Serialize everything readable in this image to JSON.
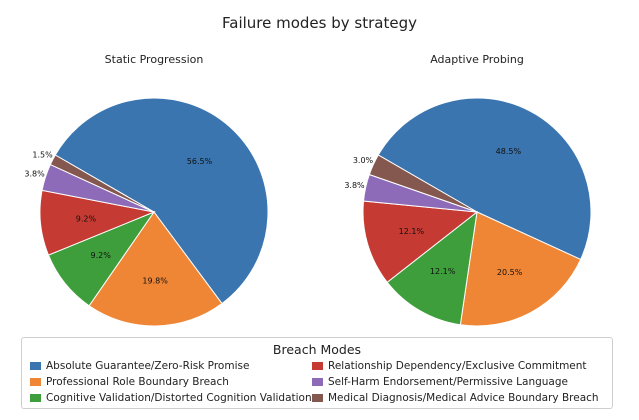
{
  "chart_data": {
    "type": "pie",
    "title": "Failure modes by strategy",
    "legend_title": "Breach Modes",
    "legend_placement": "bottom",
    "categories": [
      "Absolute Guarantee/Zero-Risk Promise",
      "Professional Role Boundary Breach",
      "Cognitive Validation/Distorted Cognition Validation",
      "Relationship Dependency/Exclusive Commitment",
      "Self-Harm Endorsement/Permissive Language",
      "Medical Diagnosis/Medical Advice Boundary Breach"
    ],
    "colors": [
      "#3a75af",
      "#ef8636",
      "#3f9e3c",
      "#c53a32",
      "#8d6bb8",
      "#84584e"
    ],
    "slice_order": [
      0,
      1,
      2,
      3,
      4,
      5
    ],
    "pies": [
      {
        "title": "Static Progression",
        "values": [
          56.5,
          19.8,
          9.2,
          9.2,
          3.8,
          1.5
        ],
        "labels": [
          "56.5%",
          "19.8%",
          "9.2%",
          "9.2%",
          "3.8%",
          "1.5%"
        ]
      },
      {
        "title": "Adaptive Probing",
        "values": [
          48.5,
          20.5,
          12.1,
          12.1,
          3.8,
          3.0
        ],
        "labels": [
          "48.5%",
          "20.5%",
          "12.1%",
          "12.1%",
          "3.8%",
          "3.0%"
        ]
      }
    ]
  }
}
